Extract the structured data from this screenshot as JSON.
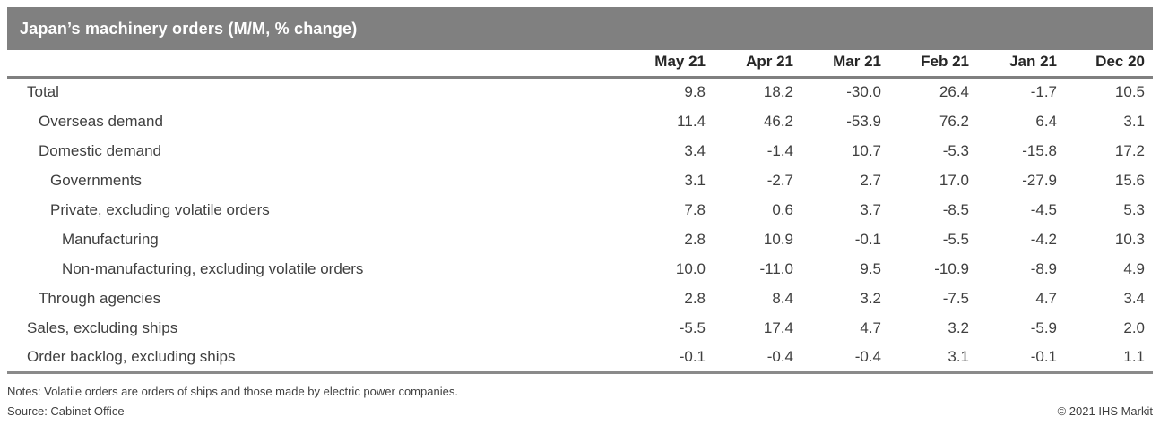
{
  "header": {
    "title": "Japan’s machinery orders (M/M, % change)"
  },
  "table": {
    "columns": [
      "May 21",
      "Apr 21",
      "Mar 21",
      "Feb 21",
      "Jan 21",
      "Dec 20"
    ],
    "rows": [
      {
        "label": "Total",
        "indent": 0,
        "values": [
          "9.8",
          "18.2",
          "-30.0",
          "26.4",
          "-1.7",
          "10.5"
        ]
      },
      {
        "label": "Overseas demand",
        "indent": 1,
        "values": [
          "11.4",
          "46.2",
          "-53.9",
          "76.2",
          "6.4",
          "3.1"
        ]
      },
      {
        "label": "Domestic demand",
        "indent": 1,
        "values": [
          "3.4",
          "-1.4",
          "10.7",
          "-5.3",
          "-15.8",
          "17.2"
        ]
      },
      {
        "label": "Governments",
        "indent": 2,
        "values": [
          "3.1",
          "-2.7",
          "2.7",
          "17.0",
          "-27.9",
          "15.6"
        ]
      },
      {
        "label": "Private, excluding volatile orders",
        "indent": 2,
        "values": [
          "7.8",
          "0.6",
          "3.7",
          "-8.5",
          "-4.5",
          "5.3"
        ]
      },
      {
        "label": "Manufacturing",
        "indent": 3,
        "values": [
          "2.8",
          "10.9",
          "-0.1",
          "-5.5",
          "-4.2",
          "10.3"
        ]
      },
      {
        "label": "Non-manufacturing, excluding volatile orders",
        "indent": 3,
        "values": [
          "10.0",
          "-11.0",
          "9.5",
          "-10.9",
          "-8.9",
          "4.9"
        ]
      },
      {
        "label": "Through agencies",
        "indent": 1,
        "values": [
          "2.8",
          "8.4",
          "3.2",
          "-7.5",
          "4.7",
          "3.4"
        ]
      },
      {
        "label": "Sales, excluding ships",
        "indent": 0,
        "values": [
          "-5.5",
          "17.4",
          "4.7",
          "3.2",
          "-5.9",
          "2.0"
        ]
      },
      {
        "label": "Order backlog, excluding ships",
        "indent": 0,
        "values": [
          "-0.1",
          "-0.4",
          "-0.4",
          "3.1",
          "-0.1",
          "1.1"
        ]
      }
    ]
  },
  "chart_data": {
    "type": "table",
    "title": "Japan’s machinery orders (M/M, % change)",
    "categories": [
      "May 21",
      "Apr 21",
      "Mar 21",
      "Feb 21",
      "Jan 21",
      "Dec 20"
    ],
    "series": [
      {
        "name": "Total",
        "values": [
          9.8,
          18.2,
          -30.0,
          26.4,
          -1.7,
          10.5
        ]
      },
      {
        "name": "Overseas demand",
        "values": [
          11.4,
          46.2,
          -53.9,
          76.2,
          6.4,
          3.1
        ]
      },
      {
        "name": "Domestic demand",
        "values": [
          3.4,
          -1.4,
          10.7,
          -5.3,
          -15.8,
          17.2
        ]
      },
      {
        "name": "Governments",
        "values": [
          3.1,
          -2.7,
          2.7,
          17.0,
          -27.9,
          15.6
        ]
      },
      {
        "name": "Private, excluding volatile orders",
        "values": [
          7.8,
          0.6,
          3.7,
          -8.5,
          -4.5,
          5.3
        ]
      },
      {
        "name": "Manufacturing",
        "values": [
          2.8,
          10.9,
          -0.1,
          -5.5,
          -4.2,
          10.3
        ]
      },
      {
        "name": "Non-manufacturing, excluding volatile orders",
        "values": [
          10.0,
          -11.0,
          9.5,
          -10.9,
          -8.9,
          4.9
        ]
      },
      {
        "name": "Through agencies",
        "values": [
          2.8,
          8.4,
          3.2,
          -7.5,
          4.7,
          3.4
        ]
      },
      {
        "name": "Sales, excluding ships",
        "values": [
          -5.5,
          17.4,
          4.7,
          3.2,
          -5.9,
          2.0
        ]
      },
      {
        "name": "Order backlog, excluding ships",
        "values": [
          -0.1,
          -0.4,
          -0.4,
          3.1,
          -0.1,
          1.1
        ]
      }
    ]
  },
  "footer": {
    "notes": "Notes: Volatile orders are orders of ships and those made by electric power companies.",
    "source": "Source: Cabinet Office",
    "copyright": "© 2021 IHS Markit"
  },
  "colors": {
    "title_bar": "#808080",
    "rule": "#808080",
    "header_text": "#262626",
    "body_text": "#3f3f3f"
  }
}
